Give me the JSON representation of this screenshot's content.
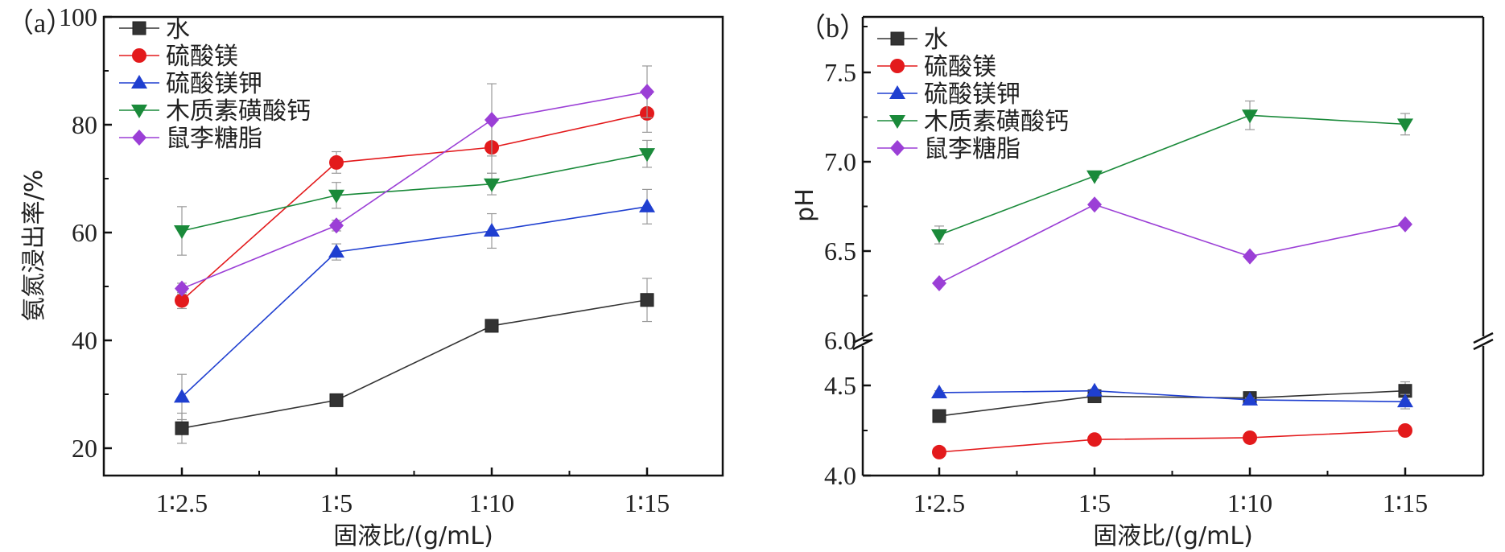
{
  "chart_data": [
    {
      "type": "line",
      "panel_label": "（a）",
      "xlabel": "固液比/(g/mL)",
      "ylabel": "氨氮浸出率/%",
      "categories": [
        "1∶2.5",
        "1∶5",
        "1∶10",
        "1∶15"
      ],
      "ylim": [
        15,
        100
      ],
      "yticks": [
        20,
        40,
        60,
        80,
        100
      ],
      "grid": false,
      "legend_position": "top-left",
      "series": [
        {
          "name": "水",
          "color": "#333333",
          "marker": "square",
          "values": [
            23.7,
            28.9,
            42.7,
            47.5
          ],
          "errors": [
            2.8,
            1.0,
            1.0,
            4.0
          ]
        },
        {
          "name": "硫酸镁",
          "color": "#e31a1c",
          "marker": "circle",
          "values": [
            47.4,
            73.0,
            75.8,
            82.1
          ],
          "errors": [
            1.5,
            2.0,
            4.8,
            3.5
          ]
        },
        {
          "name": "硫酸镁钾",
          "color": "#1f3fd0",
          "marker": "triangle-up",
          "values": [
            29.5,
            56.4,
            60.3,
            64.8
          ],
          "errors": [
            4.2,
            1.5,
            3.2,
            3.2
          ]
        },
        {
          "name": "木质素磺酸钙",
          "color": "#1a8a3a",
          "marker": "triangle-down",
          "values": [
            60.3,
            66.9,
            69.0,
            74.6
          ],
          "errors": [
            4.5,
            2.4,
            2.0,
            2.5
          ]
        },
        {
          "name": "鼠李糖脂",
          "color": "#9b3fd6",
          "marker": "diamond",
          "values": [
            49.6,
            61.3,
            80.9,
            86.1
          ],
          "errors": [
            1.0,
            1.0,
            6.7,
            4.8
          ]
        }
      ]
    },
    {
      "type": "line",
      "panel_label": "（b）",
      "xlabel": "固液比/(g/mL)",
      "ylabel": "pH",
      "categories": [
        "1∶2.5",
        "1∶5",
        "1∶10",
        "1∶15"
      ],
      "ylim": [
        4.0,
        7.7
      ],
      "axis_break": [
        4.6,
        6.0
      ],
      "yticks": [
        4.0,
        4.5,
        6.0,
        6.5,
        7.0,
        7.5
      ],
      "ytick_labels": [
        "4.0",
        "4.5",
        "6.0",
        "6.5",
        "7.0",
        "7.5"
      ],
      "grid": false,
      "legend_position": "top-left",
      "series": [
        {
          "name": "水",
          "color": "#333333",
          "marker": "square",
          "values": [
            4.33,
            4.44,
            4.43,
            4.47
          ],
          "errors": [
            0.02,
            0.01,
            0.01,
            0.05
          ]
        },
        {
          "name": "硫酸镁",
          "color": "#e31a1c",
          "marker": "circle",
          "values": [
            4.13,
            4.2,
            4.21,
            4.25
          ],
          "errors": [
            0.01,
            0.01,
            0.01,
            0.01
          ]
        },
        {
          "name": "硫酸镁钾",
          "color": "#1f3fd0",
          "marker": "triangle-up",
          "values": [
            4.46,
            4.47,
            4.42,
            4.41
          ],
          "errors": [
            0.01,
            0.01,
            0.01,
            0.04
          ]
        },
        {
          "name": "木质素磺酸钙",
          "color": "#1a8a3a",
          "marker": "triangle-down",
          "values": [
            6.59,
            6.92,
            7.26,
            7.21
          ],
          "errors": [
            0.05,
            0.01,
            0.08,
            0.06
          ]
        },
        {
          "name": "鼠李糖脂",
          "color": "#9b3fd6",
          "marker": "diamond",
          "values": [
            6.32,
            6.76,
            6.47,
            6.65
          ],
          "errors": [
            0.01,
            0.01,
            0.01,
            0.01
          ]
        }
      ]
    }
  ]
}
